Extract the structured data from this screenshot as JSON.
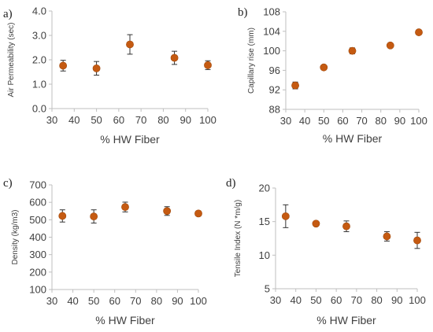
{
  "colors": {
    "marker": "#C55A11",
    "marker_edge": "#A04A0E",
    "axis": "#BFBFBF",
    "error_bar": "#333333",
    "text": "#404040"
  },
  "chart_data": [
    {
      "panel_label": "a)",
      "type": "scatter",
      "xlabel": "% HW Fiber",
      "ylabel": "Air Permeability (sec)",
      "xlim": [
        30,
        100
      ],
      "xticks": [
        "30",
        "40",
        "50",
        "60",
        "70",
        "80",
        "90",
        "100"
      ],
      "ylim": [
        0.0,
        4.0
      ],
      "yticks": [
        "0.0",
        "1.0",
        "2.0",
        "3.0",
        "4.0"
      ],
      "grid": false,
      "marker": "circle",
      "series": [
        {
          "x": [
            35,
            50,
            65,
            85,
            100
          ],
          "y": [
            1.76,
            1.65,
            2.63,
            2.08,
            1.78
          ],
          "error": [
            0.22,
            0.28,
            0.4,
            0.27,
            0.18
          ]
        }
      ]
    },
    {
      "panel_label": "b)",
      "type": "scatter",
      "xlabel": "% HW Fiber",
      "ylabel": "Capillary rise (mm)",
      "xlim": [
        30,
        100
      ],
      "xticks": [
        "30",
        "40",
        "50",
        "60",
        "70",
        "80",
        "90",
        "100"
      ],
      "ylim": [
        88,
        108
      ],
      "yticks": [
        "88",
        "92",
        "96",
        "100",
        "104",
        "108"
      ],
      "grid": false,
      "marker": "circle",
      "series": [
        {
          "x": [
            35,
            50,
            65,
            85,
            100
          ],
          "y": [
            92.9,
            96.6,
            100.0,
            101.1,
            103.8
          ],
          "error": [
            0.7,
            0.4,
            0.6,
            0.4,
            0.2
          ]
        }
      ]
    },
    {
      "panel_label": "c)",
      "type": "scatter",
      "xlabel": "% HW Fiber",
      "ylabel": "Density (kg/m3)",
      "xlim": [
        30,
        100
      ],
      "xticks": [
        "30",
        "40",
        "50",
        "60",
        "70",
        "80",
        "90",
        "100"
      ],
      "ylim": [
        100,
        700
      ],
      "yticks": [
        "100",
        "200",
        "300",
        "400",
        "500",
        "600",
        "700"
      ],
      "grid": false,
      "marker": "circle",
      "series": [
        {
          "x": [
            35,
            50,
            65,
            85,
            100
          ],
          "y": [
            522,
            519,
            573,
            550,
            536
          ],
          "error": [
            35,
            38,
            28,
            25,
            12
          ]
        }
      ]
    },
    {
      "panel_label": "d)",
      "type": "scatter",
      "xlabel": "% HW Fiber",
      "ylabel": "Tensile Index (N *m/g)",
      "xlim": [
        30,
        100
      ],
      "xticks": [
        "30",
        "40",
        "50",
        "60",
        "70",
        "80",
        "90",
        "100"
      ],
      "ylim": [
        5,
        20
      ],
      "yticks": [
        "5",
        "10",
        "15",
        "20"
      ],
      "grid": false,
      "marker": "circle",
      "series": [
        {
          "x": [
            35,
            50,
            65,
            85,
            100
          ],
          "y": [
            15.8,
            14.7,
            14.3,
            12.8,
            12.2
          ],
          "error": [
            1.7,
            0.3,
            0.8,
            0.7,
            1.2
          ]
        }
      ]
    }
  ]
}
